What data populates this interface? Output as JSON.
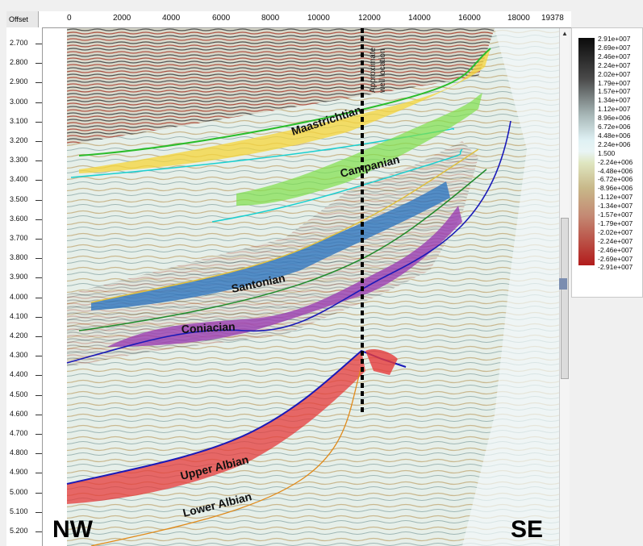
{
  "ruler": {
    "corner_label": "Offset",
    "x_ticks": [
      "0",
      "2000",
      "4000",
      "6000",
      "8000",
      "10000",
      "12000",
      "14000",
      "16000",
      "18000",
      "19378"
    ],
    "y_ticks": [
      "2.700",
      "2.800",
      "2.900",
      "3.000",
      "3.100",
      "3.200",
      "3.300",
      "3.400",
      "3.500",
      "3.600",
      "3.700",
      "3.800",
      "3.900",
      "4.000",
      "4.100",
      "4.200",
      "4.300",
      "4.400",
      "4.500",
      "4.600",
      "4.700",
      "4.800",
      "4.900",
      "5.000",
      "5.100",
      "5.200"
    ]
  },
  "horizons": {
    "maastrichtian": "Maastrichtian",
    "campanian": "Campanian",
    "santonian": "Santonian",
    "coniacian": "Coniacian",
    "upper_albian": "Upper Albian",
    "lower_albian": "Lower Albian"
  },
  "well": {
    "line1": "Approximate",
    "line2": "well location"
  },
  "directions": {
    "west": "NW",
    "east": "SE"
  },
  "colorbar": {
    "labels": [
      "2.91e+007",
      "2.69e+007",
      "2.46e+007",
      "2.24e+007",
      "2.02e+007",
      "1.79e+007",
      "1.57e+007",
      "1.34e+007",
      "1.12e+007",
      "8.96e+006",
      "6.72e+006",
      "4.48e+006",
      "2.24e+006",
      "1.500",
      "-2.24e+006",
      "-4.48e+006",
      "-6.72e+006",
      "-8.96e+006",
      "-1.12e+007",
      "-1.34e+007",
      "-1.57e+007",
      "-1.79e+007",
      "-2.02e+007",
      "-2.24e+007",
      "-2.46e+007",
      "-2.69e+007",
      "-2.91e+007"
    ]
  },
  "colors": {
    "maastrichtian_fill": "#f5d53a",
    "campanian_fill": "#7fe04a",
    "santonian_fill": "#2f77c0",
    "coniacian_fill": "#9b3fb3",
    "upper_albian_fill": "#e63a3a",
    "top_line": "#2bbd2b",
    "base_line": "#1ad0d0",
    "blue_line": "#1a1ab8",
    "orange_line": "#e08a1a"
  }
}
